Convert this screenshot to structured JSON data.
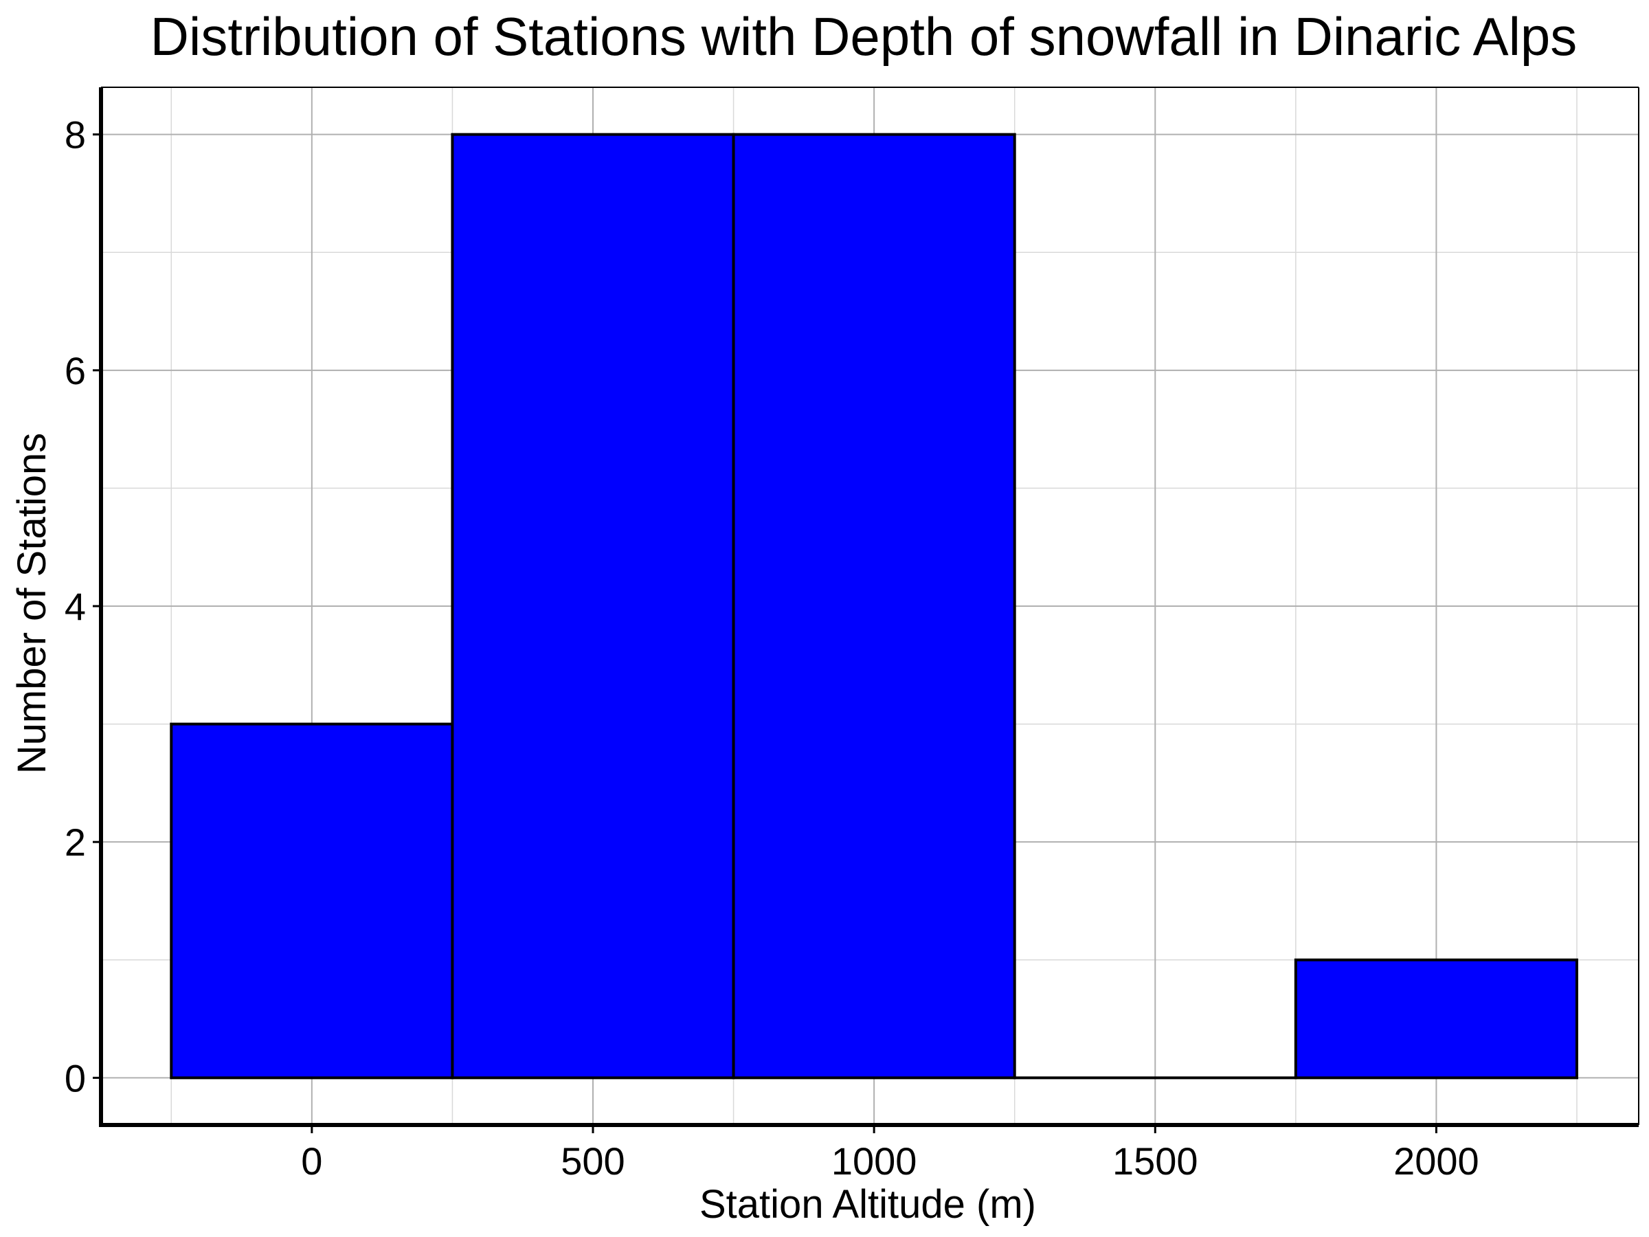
{
  "chart_data": {
    "type": "bar",
    "title": "Distribution of Stations with Depth of snowfall in Dinaric Alps",
    "xlabel": "Station Altitude (m)",
    "ylabel": "Number of Stations",
    "bins": [
      {
        "start": -250,
        "end": 250,
        "count": 3
      },
      {
        "start": 250,
        "end": 750,
        "count": 8
      },
      {
        "start": 750,
        "end": 1250,
        "count": 8
      },
      {
        "start": 1250,
        "end": 1750,
        "count": 0
      },
      {
        "start": 1750,
        "end": 2250,
        "count": 1
      }
    ],
    "xlim": [
      -375,
      2360
    ],
    "ylim": [
      -0.4,
      8.4
    ],
    "x_ticks": [
      0,
      500,
      1000,
      1500,
      2000
    ],
    "x_tick_labels": [
      "0",
      "500",
      "1000",
      "1500",
      "2000"
    ],
    "x_minor_gridlines": [
      -250,
      250,
      750,
      1250,
      1750,
      2250
    ],
    "y_ticks": [
      0,
      2,
      4,
      6,
      8
    ],
    "y_tick_labels": [
      "0",
      "2",
      "4",
      "6",
      "8"
    ],
    "y_minor_gridlines": [
      1,
      3,
      5,
      7
    ],
    "grid": true,
    "colors": {
      "bar_fill": "#0000ff",
      "bar_edge": "#000000",
      "major_grid": "#b0b0b0",
      "minor_grid": "#d9d9d9"
    }
  }
}
